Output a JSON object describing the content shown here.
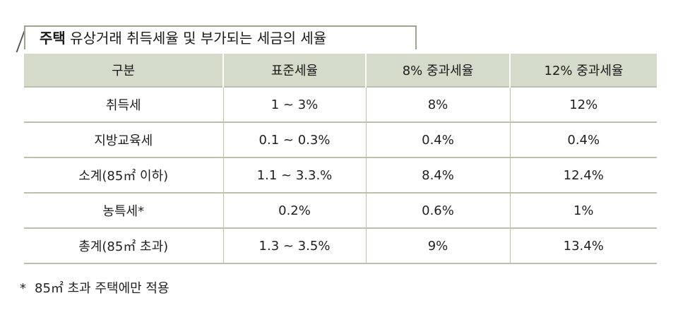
{
  "title": {
    "bold": "주택",
    "rest": " 유상거래 취득세율 및 부가되는 세금의 세율"
  },
  "table": {
    "headers": [
      "구분",
      "표준세율",
      "8% 중과세율",
      "12% 중과세율"
    ],
    "rows": [
      [
        "취득세",
        "1 ~ 3%",
        "8%",
        "12%"
      ],
      [
        "지방교육세",
        "0.1 ~ 0.3%",
        "0.4%",
        "0.4%"
      ],
      [
        "소계(85㎡ 이하)",
        "1.1 ~ 3.3.%",
        "8.4%",
        "12.4%"
      ],
      [
        "농특세*",
        "0.2%",
        "0.6%",
        "1%"
      ],
      [
        "총계(85㎡ 초과)",
        "1.3 ~ 3.5%",
        "9%",
        "13.4%"
      ]
    ]
  },
  "footnote": {
    "mark": "*",
    "text": "85㎡ 초과 주택에만 적용"
  },
  "colors": {
    "header_bg": "#d4dbca",
    "border": "#b9c2ad",
    "tab_border": "#9aa78c"
  }
}
